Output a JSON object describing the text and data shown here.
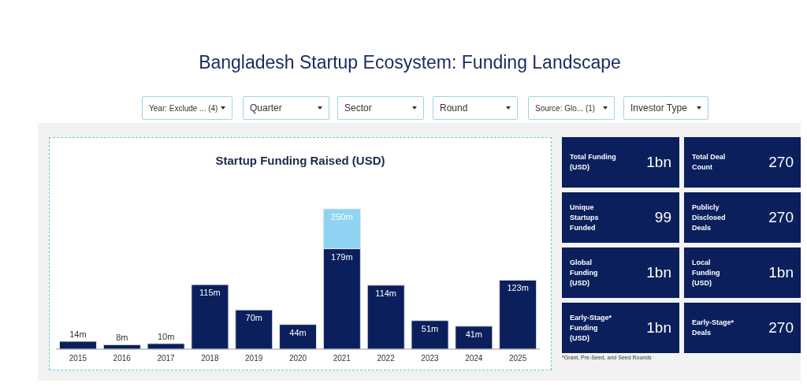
{
  "chart_data": [
    {
      "type": "bar",
      "title": "Startup Funding Raised (USD)",
      "categories": [
        "2015",
        "2016",
        "2017",
        "2018",
        "2019",
        "2020",
        "2021",
        "2022",
        "2023",
        "2024",
        "2025"
      ],
      "stacked": true,
      "series": [
        {
          "color": "#0a1f5c",
          "values": [
            14,
            8,
            10,
            115,
            70,
            44,
            179,
            114,
            51,
            41,
            123
          ],
          "value_labels": [
            "14m",
            "8m",
            "10m",
            "115m",
            "70m",
            "44m",
            "179m",
            "114m",
            "51m",
            "41m",
            "123m"
          ]
        },
        {
          "color": "#8fd3f2",
          "values": [
            null,
            null,
            null,
            null,
            null,
            null,
            71,
            null,
            null,
            null,
            null
          ]
        }
      ],
      "totals": [
        null,
        null,
        null,
        null,
        null,
        null,
        "250m",
        null,
        null,
        null,
        null
      ]
    },
    {
      "type": "other",
      "annotations": [
        "Bangladesh Startup Ecosystem: Funding Landscape",
        "Year: Exclude ... (4)",
        "Quarter",
        "Sector",
        "Round",
        "Source: Glo... (1)",
        "Investor Type",
        "Total Funding (USD)",
        "1bn",
        "Total Deal Count",
        "270",
        "Unique Startups Funded",
        "99",
        "Publicly Disclosed Deals",
        "270",
        "Global Funding (USD)",
        "1bn",
        "Local Funding (USD)",
        "1bn",
        "Early-Stage* Funding (USD)",
        "1bn",
        "Early-Stage* Deals",
        "270",
        "*Grant, Pre-Seed, and Seed Rounds"
      ]
    }
  ]
}
